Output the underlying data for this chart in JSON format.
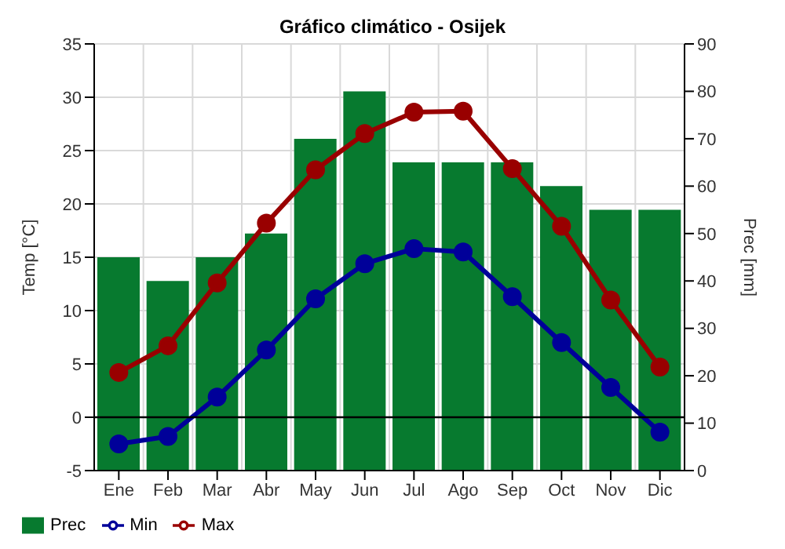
{
  "chart_data": {
    "type": "bar",
    "title": "Gráfico climático - Osijek",
    "ylabel": "Temp [°C]",
    "y2label": "Prec [mm]",
    "categories": [
      "Ene",
      "Feb",
      "Mar",
      "Abr",
      "May",
      "Jun",
      "Jul",
      "Ago",
      "Sep",
      "Oct",
      "Nov",
      "Dic"
    ],
    "series": [
      {
        "name": "Prec",
        "axis": "y2",
        "color": "#077a2f",
        "values": [
          45,
          40,
          45,
          50,
          70,
          80,
          65,
          65,
          65,
          60,
          55,
          55
        ]
      },
      {
        "name": "Min",
        "type": "line",
        "color": "#000099",
        "values": [
          -2.5,
          -1.8,
          1.9,
          6.3,
          11.1,
          14.4,
          15.8,
          15.5,
          11.3,
          7.0,
          2.8,
          -1.4
        ]
      },
      {
        "name": "Max",
        "type": "line",
        "color": "#990000",
        "values": [
          4.2,
          6.7,
          12.6,
          18.2,
          23.2,
          26.6,
          28.6,
          28.7,
          23.3,
          17.9,
          11.0,
          4.7
        ]
      }
    ],
    "ylim": [
      -5,
      35
    ],
    "yticks": [
      -5,
      0,
      5,
      10,
      15,
      20,
      25,
      30,
      35
    ],
    "y2lim": [
      0,
      90
    ],
    "y2ticks": [
      0,
      10,
      20,
      30,
      40,
      50,
      60,
      70,
      80,
      90
    ],
    "ref_lines": [
      {
        "axis": "y",
        "value": 0,
        "color": "#000000"
      }
    ],
    "grid": true,
    "legend": "bottom left",
    "marker": "circle"
  }
}
